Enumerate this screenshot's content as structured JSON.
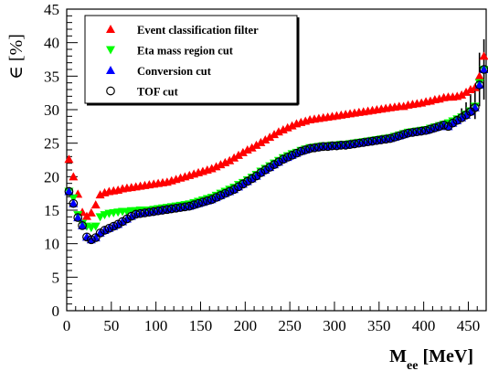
{
  "chart_data": {
    "type": "scatter",
    "xlabel_main": "M",
    "xlabel_sub": "ee",
    "xlabel_unit": " [MeV]",
    "ylabel": "∈ [%]",
    "xlim": [
      0,
      470
    ],
    "ylim": [
      0,
      45
    ],
    "x_ticks": [
      0,
      50,
      100,
      150,
      200,
      250,
      300,
      350,
      400,
      450
    ],
    "y_ticks": [
      0,
      5,
      10,
      15,
      20,
      25,
      30,
      35,
      40,
      45
    ],
    "legend_position": "top-left",
    "series": [
      {
        "name": "Event classification filter",
        "marker": "triangle-up",
        "color": "#ff0000",
        "x": [
          2.5,
          7.5,
          12.5,
          17.5,
          22.5,
          27.5,
          32.5,
          37.5,
          42.5,
          47.5,
          52.5,
          57.5,
          62.5,
          67.5,
          72.5,
          77.5,
          82.5,
          87.5,
          92.5,
          97.5,
          102.5,
          107.5,
          112.5,
          117.5,
          122.5,
          127.5,
          132.5,
          137.5,
          142.5,
          147.5,
          152.5,
          157.5,
          162.5,
          167.5,
          172.5,
          177.5,
          182.5,
          187.5,
          192.5,
          197.5,
          202.5,
          207.5,
          212.5,
          217.5,
          222.5,
          227.5,
          232.5,
          237.5,
          242.5,
          247.5,
          252.5,
          257.5,
          262.5,
          267.5,
          272.5,
          277.5,
          282.5,
          287.5,
          292.5,
          297.5,
          302.5,
          307.5,
          312.5,
          317.5,
          322.5,
          327.5,
          332.5,
          337.5,
          342.5,
          347.5,
          352.5,
          357.5,
          362.5,
          367.5,
          372.5,
          377.5,
          382.5,
          387.5,
          392.5,
          397.5,
          402.5,
          407.5,
          412.5,
          417.5,
          422.5,
          427.5,
          432.5,
          437.5,
          442.5,
          447.5,
          452.5,
          457.5,
          462.5,
          467.5
        ],
        "y": [
          22.6,
          20,
          17.4,
          14.7,
          14.1,
          14.6,
          15.8,
          17.3,
          17.6,
          17.8,
          17.9,
          18,
          18.2,
          18.3,
          18.4,
          18.5,
          18.6,
          18.7,
          18.8,
          18.9,
          19,
          19.1,
          19.2,
          19.4,
          19.6,
          19.8,
          20,
          20.2,
          20.4,
          20.6,
          20.8,
          21,
          21.2,
          21.5,
          21.8,
          22.1,
          22.4,
          22.8,
          23.2,
          23.6,
          24,
          24.3,
          24.7,
          25.1,
          25.5,
          25.9,
          26.3,
          26.7,
          27,
          27.3,
          27.6,
          27.9,
          28.1,
          28.3,
          28.5,
          28.6,
          28.7,
          28.8,
          28.9,
          29,
          29.1,
          29.2,
          29.3,
          29.4,
          29.5,
          29.6,
          29.7,
          29.8,
          29.9,
          30,
          30.1,
          30.2,
          30.3,
          30.4,
          30.5,
          30.5,
          30.7,
          30.8,
          30.9,
          31,
          31.2,
          31.3,
          31.5,
          31.6,
          31.8,
          31.9,
          31.9,
          32,
          32.2,
          32.6,
          33,
          33.3,
          35,
          38
        ]
      },
      {
        "name": "Eta mass region cut",
        "marker": "triangle-down",
        "color": "#00ff00",
        "x": [
          2.5,
          7.5,
          12.5,
          17.5,
          22.5,
          27.5,
          32.5,
          37.5,
          42.5,
          47.5,
          52.5,
          57.5,
          62.5,
          67.5,
          72.5,
          77.5,
          82.5,
          87.5,
          92.5,
          97.5,
          102.5,
          107.5,
          112.5,
          117.5,
          122.5,
          127.5,
          132.5,
          137.5,
          142.5,
          147.5,
          152.5,
          157.5,
          162.5,
          167.5,
          172.5,
          177.5,
          182.5,
          187.5,
          192.5,
          197.5,
          202.5,
          207.5,
          212.5,
          217.5,
          222.5,
          227.5,
          232.5,
          237.5,
          242.5,
          247.5,
          252.5,
          257.5,
          262.5,
          267.5,
          272.5,
          277.5,
          282.5,
          287.5,
          292.5,
          297.5,
          302.5,
          307.5,
          312.5,
          317.5,
          322.5,
          327.5,
          332.5,
          337.5,
          342.5,
          347.5,
          352.5,
          357.5,
          362.5,
          367.5,
          372.5,
          377.5,
          382.5,
          387.5,
          392.5,
          397.5,
          402.5,
          407.5,
          412.5,
          417.5,
          422.5,
          427.5,
          432.5,
          437.5,
          442.5,
          447.5,
          452.5,
          457.5,
          462.5,
          467.5
        ],
        "y": [
          17.8,
          16.8,
          14.3,
          13,
          12.6,
          12.4,
          12.6,
          14,
          14.3,
          14.5,
          14.6,
          14.7,
          14.8,
          14.8,
          14.9,
          14.9,
          15,
          15,
          15,
          15.1,
          15.2,
          15.3,
          15.4,
          15.5,
          15.6,
          15.7,
          15.8,
          15.9,
          16.1,
          16.3,
          16.5,
          16.7,
          16.9,
          17.2,
          17.5,
          17.8,
          18.1,
          18.4,
          18.8,
          19.1,
          19.5,
          19.9,
          20.3,
          20.8,
          21.2,
          21.6,
          22,
          22.4,
          22.8,
          23.1,
          23.4,
          23.6,
          23.9,
          24.1,
          24.3,
          24.4,
          24.5,
          24.6,
          24.6,
          24.7,
          24.7,
          24.8,
          24.8,
          24.9,
          25,
          25.1,
          25.2,
          25.3,
          25.4,
          25.5,
          25.6,
          25.7,
          25.8,
          26,
          26.2,
          26.4,
          26.6,
          26.7,
          26.8,
          26.9,
          27,
          27.2,
          27.4,
          27.6,
          27.8,
          28,
          28.3,
          28.6,
          28.9,
          29.3,
          29.8,
          30.5,
          34,
          36
        ]
      },
      {
        "name": "Conversion cut",
        "marker": "triangle-up",
        "color": "#0000ff",
        "x": [
          2.5,
          7.5,
          12.5,
          17.5,
          22.5,
          27.5,
          32.5,
          37.5,
          42.5,
          47.5,
          52.5,
          57.5,
          62.5,
          67.5,
          72.5,
          77.5,
          82.5,
          87.5,
          92.5,
          97.5,
          102.5,
          107.5,
          112.5,
          117.5,
          122.5,
          127.5,
          132.5,
          137.5,
          142.5,
          147.5,
          152.5,
          157.5,
          162.5,
          167.5,
          172.5,
          177.5,
          182.5,
          187.5,
          192.5,
          197.5,
          202.5,
          207.5,
          212.5,
          217.5,
          222.5,
          227.5,
          232.5,
          237.5,
          242.5,
          247.5,
          252.5,
          257.5,
          262.5,
          267.5,
          272.5,
          277.5,
          282.5,
          287.5,
          292.5,
          297.5,
          302.5,
          307.5,
          312.5,
          317.5,
          322.5,
          327.5,
          332.5,
          337.5,
          342.5,
          347.5,
          352.5,
          357.5,
          362.5,
          367.5,
          372.5,
          377.5,
          382.5,
          387.5,
          392.5,
          397.5,
          402.5,
          407.5,
          412.5,
          417.5,
          422.5,
          427.5,
          432.5,
          437.5,
          442.5,
          447.5,
          452.5,
          457.5,
          462.5,
          467.5
        ],
        "y": [
          17.8,
          16,
          13.9,
          12.7,
          11,
          10.6,
          10.9,
          11.6,
          12,
          12.3,
          12.6,
          12.9,
          13.3,
          13.7,
          14.1,
          14.4,
          14.5,
          14.6,
          14.7,
          14.8,
          14.9,
          15,
          15.1,
          15.2,
          15.3,
          15.4,
          15.5,
          15.6,
          15.8,
          16,
          16.2,
          16.4,
          16.6,
          16.9,
          17.2,
          17.5,
          17.8,
          18.1,
          18.5,
          18.9,
          19.3,
          19.7,
          20.1,
          20.6,
          21,
          21.4,
          21.8,
          22.2,
          22.6,
          22.9,
          23.2,
          23.5,
          23.8,
          24,
          24.2,
          24.3,
          24.4,
          24.5,
          24.5,
          24.6,
          24.6,
          24.7,
          24.7,
          24.8,
          24.9,
          25,
          25.1,
          25.2,
          25.3,
          25.4,
          25.5,
          25.6,
          25.7,
          25.9,
          26.1,
          26.3,
          26.5,
          26.6,
          26.7,
          26.8,
          26.9,
          27.1,
          27.3,
          27.5,
          27.7,
          27.5,
          28,
          28.4,
          28.8,
          29.2,
          29.7,
          30.3,
          33.7,
          36
        ]
      },
      {
        "name": "TOF cut",
        "marker": "circle-open",
        "color": "#000000",
        "x": [
          2.5,
          7.5,
          12.5,
          17.5,
          22.5,
          27.5,
          32.5,
          37.5,
          42.5,
          47.5,
          52.5,
          57.5,
          62.5,
          67.5,
          72.5,
          77.5,
          82.5,
          87.5,
          92.5,
          97.5,
          102.5,
          107.5,
          112.5,
          117.5,
          122.5,
          127.5,
          132.5,
          137.5,
          142.5,
          147.5,
          152.5,
          157.5,
          162.5,
          167.5,
          172.5,
          177.5,
          182.5,
          187.5,
          192.5,
          197.5,
          202.5,
          207.5,
          212.5,
          217.5,
          222.5,
          227.5,
          232.5,
          237.5,
          242.5,
          247.5,
          252.5,
          257.5,
          262.5,
          267.5,
          272.5,
          277.5,
          282.5,
          287.5,
          292.5,
          297.5,
          302.5,
          307.5,
          312.5,
          317.5,
          322.5,
          327.5,
          332.5,
          337.5,
          342.5,
          347.5,
          352.5,
          357.5,
          362.5,
          367.5,
          372.5,
          377.5,
          382.5,
          387.5,
          392.5,
          397.5,
          402.5,
          407.5,
          412.5,
          417.5,
          422.5,
          427.5,
          432.5,
          437.5,
          442.5,
          447.5,
          452.5,
          457.5,
          462.5,
          467.5
        ],
        "y": [
          17.8,
          16,
          13.9,
          12.7,
          11,
          10.6,
          10.9,
          11.6,
          12,
          12.3,
          12.6,
          12.9,
          13.3,
          13.7,
          14.1,
          14.4,
          14.5,
          14.6,
          14.7,
          14.8,
          14.9,
          15,
          15.1,
          15.2,
          15.3,
          15.4,
          15.5,
          15.6,
          15.8,
          16,
          16.2,
          16.4,
          16.6,
          16.9,
          17.2,
          17.5,
          17.8,
          18.1,
          18.5,
          18.9,
          19.3,
          19.7,
          20.1,
          20.6,
          21,
          21.4,
          21.8,
          22.2,
          22.6,
          22.9,
          23.2,
          23.5,
          23.8,
          24,
          24.2,
          24.3,
          24.4,
          24.5,
          24.5,
          24.6,
          24.6,
          24.7,
          24.7,
          24.8,
          24.9,
          25,
          25.1,
          25.2,
          25.3,
          25.4,
          25.5,
          25.6,
          25.7,
          25.9,
          26.1,
          26.3,
          26.5,
          26.6,
          26.7,
          26.8,
          26.9,
          27.1,
          27.3,
          27.5,
          27.7,
          27.5,
          28,
          28.4,
          28.8,
          29.2,
          29.7,
          30.3,
          33.7,
          36
        ],
        "error_bars": [
          {
            "x": 442.5,
            "lo": 28.4,
            "hi": 30.2
          },
          {
            "x": 447.5,
            "lo": 28.7,
            "hi": 31.1
          },
          {
            "x": 452.5,
            "lo": 29.1,
            "hi": 32.3
          },
          {
            "x": 457.5,
            "lo": 28.6,
            "hi": 33.2
          },
          {
            "x": 462.5,
            "lo": 30.5,
            "hi": 38.5
          },
          {
            "x": 467.5,
            "lo": 31.5,
            "hi": 40.5
          }
        ]
      }
    ]
  }
}
